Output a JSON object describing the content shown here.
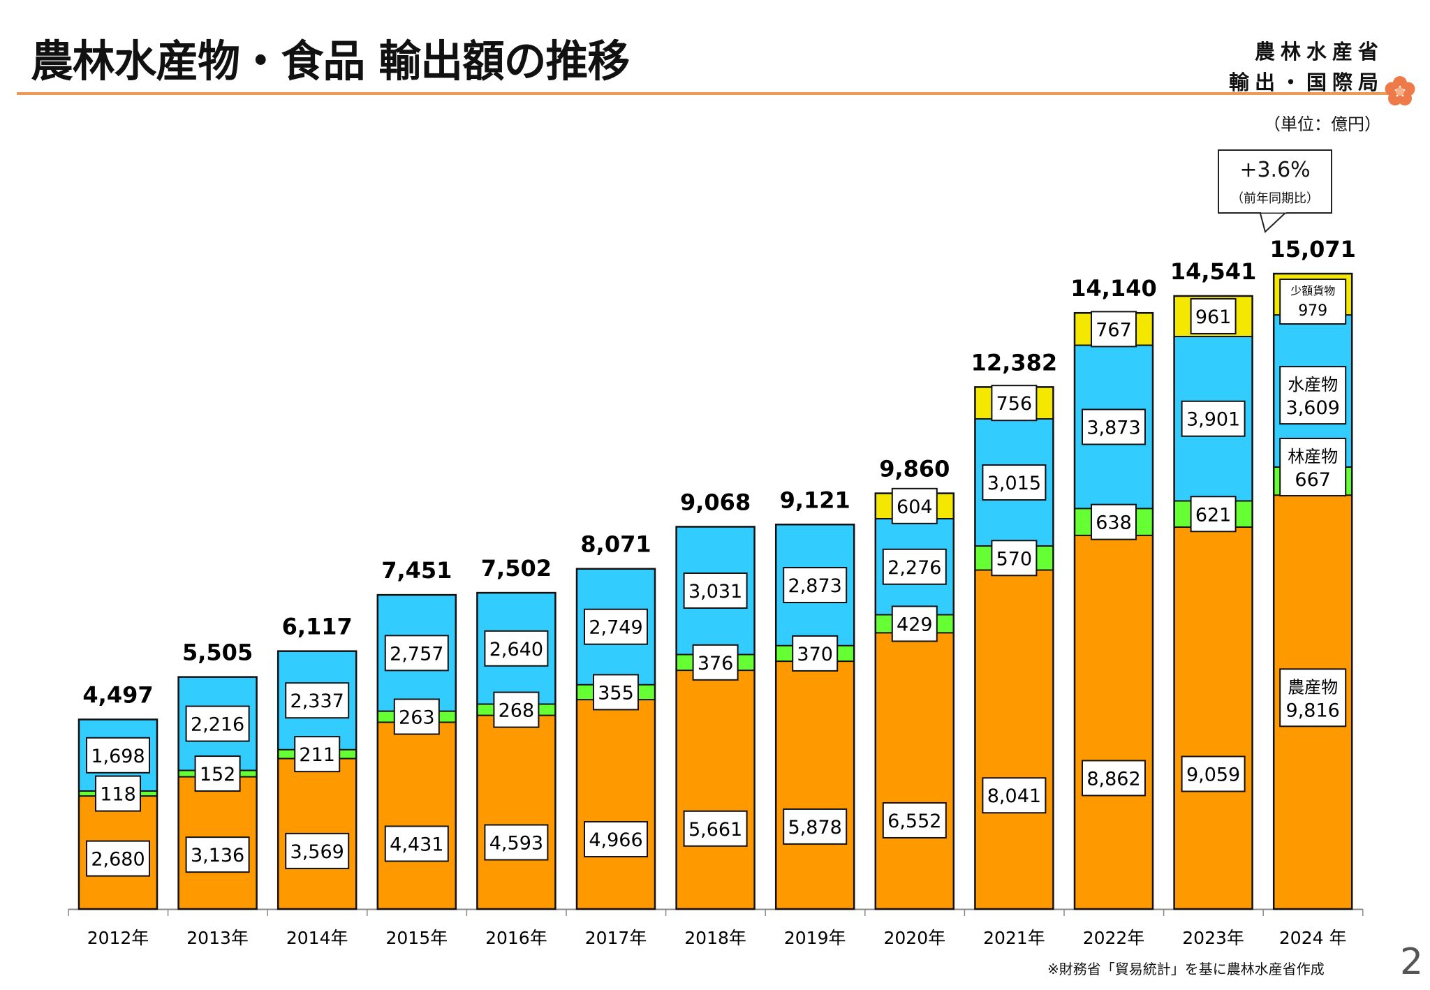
{
  "header": {
    "title": "農林水産物・食品 輸出額の推移",
    "org_line1": "農林水産省",
    "org_line2": "輸出・国際局",
    "unit": "（単位：億円）"
  },
  "callout": {
    "change": "+3.6%",
    "note": "（前年同期比）"
  },
  "footer": {
    "source": "※財務省「貿易統計」を基に農林水産省作成",
    "page_number": "2"
  },
  "chart_data": {
    "type": "bar",
    "stacked": true,
    "title": "農林水産物・食品 輸出額の推移",
    "unit": "億円",
    "categories": [
      "2012年",
      "2013年",
      "2014年",
      "2015年",
      "2016年",
      "2017年",
      "2018年",
      "2019年",
      "2020年",
      "2021年",
      "2022年",
      "2023年",
      "2024 年"
    ],
    "series": [
      {
        "name": "農産物",
        "color": "#ff9900",
        "values": [
          2680,
          3136,
          3569,
          4431,
          4593,
          4966,
          5661,
          5878,
          6552,
          8041,
          8862,
          9059,
          9816
        ]
      },
      {
        "name": "林産物",
        "color": "#66ff33",
        "values": [
          118,
          152,
          211,
          263,
          268,
          355,
          376,
          370,
          429,
          570,
          638,
          621,
          667
        ]
      },
      {
        "name": "水産物",
        "color": "#33ccff",
        "values": [
          1698,
          2216,
          2337,
          2757,
          2640,
          2749,
          3031,
          2873,
          2276,
          3015,
          3873,
          3901,
          3609
        ]
      },
      {
        "name": "少額貨物",
        "color": "#f5e800",
        "values": [
          null,
          null,
          null,
          null,
          null,
          null,
          null,
          null,
          604,
          756,
          767,
          961,
          979
        ]
      }
    ],
    "value_labels": [
      [
        "2,680",
        "118",
        "1,698",
        null
      ],
      [
        "3,136",
        "152",
        "2,216",
        null
      ],
      [
        "3,569",
        "211",
        "2,337",
        null
      ],
      [
        "4,431",
        "263",
        "2,757",
        null
      ],
      [
        "4,593",
        "268",
        "2,640",
        null
      ],
      [
        "4,966",
        "355",
        "2,749",
        null
      ],
      [
        "5,661",
        "376",
        "3,031",
        null
      ],
      [
        "5,878",
        "370",
        "2,873",
        null
      ],
      [
        "6,552",
        "429",
        "2,276",
        "604"
      ],
      [
        "8,041",
        "570",
        "3,015",
        "756"
      ],
      [
        "8,862",
        "638",
        "3,873",
        "767"
      ],
      [
        "9,059",
        "621",
        "3,901",
        "961"
      ],
      [
        "9,816",
        "667",
        "3,609",
        "979"
      ]
    ],
    "totals": [
      4497,
      5505,
      6117,
      7451,
      7502,
      8071,
      9068,
      9121,
      9860,
      12382,
      14140,
      14541,
      15071
    ],
    "total_labels": [
      "4,497",
      "5,505",
      "6,117",
      "7,451",
      "7,502",
      "8,071",
      "9,068",
      "9,121",
      "9,860",
      "12,382",
      "14,140",
      "14,541",
      "15,071"
    ],
    "last_bar_series_labels": [
      "農産物",
      "林産物",
      "水産物",
      "少額貨物"
    ],
    "ylim": [
      0,
      15500
    ],
    "xlabel": "",
    "ylabel": "",
    "grid": false,
    "legend": "inline labels on last bar"
  }
}
